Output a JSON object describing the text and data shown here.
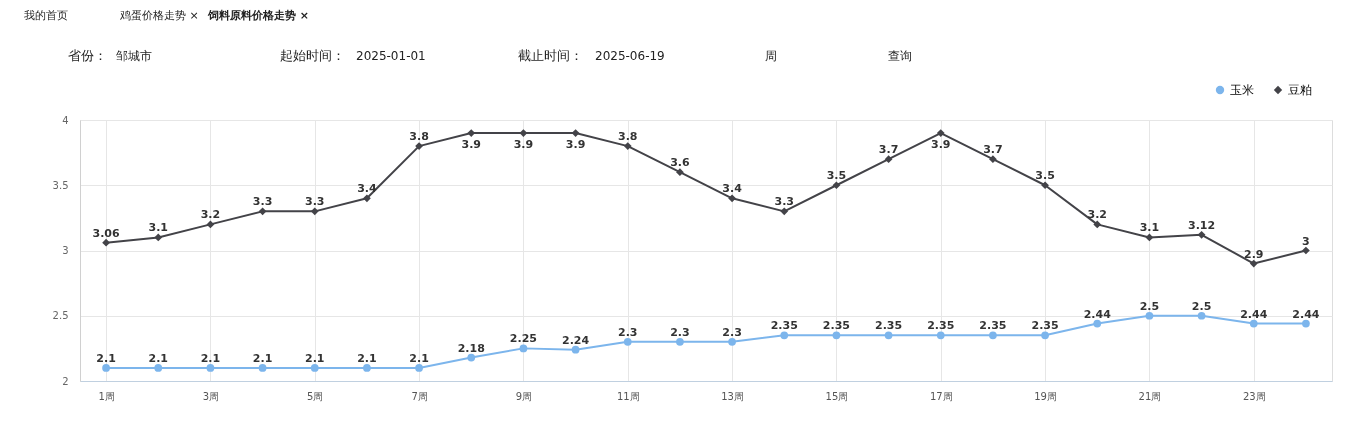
{
  "chart_data": {
    "type": "line",
    "annotations": [
      "我的首页",
      "鸡蛋价格走势 ×",
      "饲料原料价格走势 ×",
      "省份：",
      "邹城市",
      "起始时间：",
      "2025-01-01",
      "截止时间：",
      "2025-06-19",
      "周",
      "查询"
    ],
    "categories": [
      "1周",
      null,
      "3周",
      null,
      "5周",
      null,
      "7周",
      null,
      "9周",
      null,
      "11周",
      null,
      "13周",
      null,
      "15周",
      null,
      "17周",
      null,
      "19周",
      null,
      "21周",
      null,
      "23周",
      null
    ],
    "series": [
      {
        "name": "玉米",
        "color": "#7cb5ec",
        "marker": "circle",
        "values": [
          2.1,
          2.1,
          2.1,
          2.1,
          2.1,
          2.1,
          2.1,
          2.18,
          2.25,
          2.24,
          2.3,
          2.3,
          2.3,
          2.35,
          2.35,
          2.35,
          2.35,
          2.35,
          2.35,
          2.44,
          2.5,
          2.5,
          2.44,
          2.44
        ]
      },
      {
        "name": "豆粕",
        "color": "#434348",
        "marker": "diamond",
        "values": [
          3.06,
          3.1,
          3.2,
          3.3,
          3.3,
          3.4,
          3.8,
          3.9,
          3.9,
          3.9,
          3.8,
          3.6,
          3.4,
          3.3,
          3.5,
          3.7,
          3.9,
          3.7,
          3.5,
          3.2,
          3.1,
          3.12,
          2.9,
          3
        ]
      }
    ],
    "ylim": [
      2,
      4
    ],
    "yticks": [
      2,
      2.5,
      3,
      3.5,
      4
    ],
    "grid": true,
    "legend": "top right",
    "data_labels": true
  }
}
